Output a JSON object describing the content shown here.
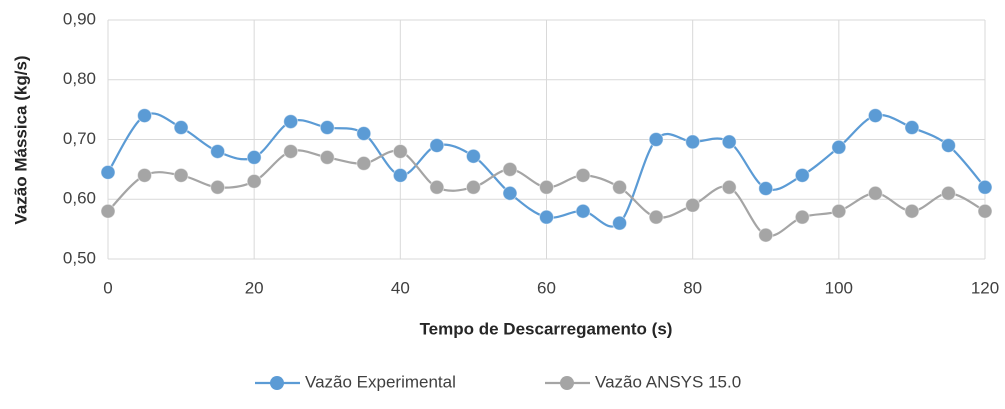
{
  "chart_data": {
    "type": "line",
    "x_label": "Tempo de Descarregamento (s)",
    "y_label": "Vazão Mássica (kg/s)",
    "x": [
      0,
      5,
      10,
      15,
      20,
      25,
      30,
      35,
      40,
      45,
      50,
      55,
      60,
      65,
      70,
      75,
      80,
      85,
      90,
      95,
      100,
      105,
      110,
      115,
      120
    ],
    "series": [
      {
        "name": "Vazão Experimental",
        "color": "#5b9bd5",
        "values": [
          0.645,
          0.74,
          0.72,
          0.68,
          0.67,
          0.73,
          0.72,
          0.71,
          0.64,
          0.69,
          0.672,
          0.61,
          0.57,
          0.58,
          0.56,
          0.7,
          0.696,
          0.696,
          0.618,
          0.64,
          0.687,
          0.74,
          0.72,
          0.69,
          0.62
        ]
      },
      {
        "name": "Vazão ANSYS 15.0",
        "color": "#a5a5a5",
        "values": [
          0.58,
          0.64,
          0.64,
          0.62,
          0.63,
          0.68,
          0.67,
          0.66,
          0.68,
          0.62,
          0.62,
          0.65,
          0.62,
          0.64,
          0.62,
          0.57,
          0.59,
          0.62,
          0.54,
          0.57,
          0.58,
          0.61,
          0.58,
          0.61,
          0.58
        ]
      }
    ],
    "xlim": [
      0,
      120
    ],
    "xticks": [
      0,
      20,
      40,
      60,
      80,
      100,
      120
    ],
    "ylim": [
      0.5,
      0.9
    ],
    "yticks": [
      {
        "value": 0.5,
        "label": "0,50"
      },
      {
        "value": 0.6,
        "label": "0,60"
      },
      {
        "value": 0.7,
        "label": "0,70"
      },
      {
        "value": 0.8,
        "label": "0,80"
      },
      {
        "value": 0.9,
        "label": "0,90"
      }
    ],
    "grid": true,
    "legend": "bottom",
    "smooth": true
  }
}
